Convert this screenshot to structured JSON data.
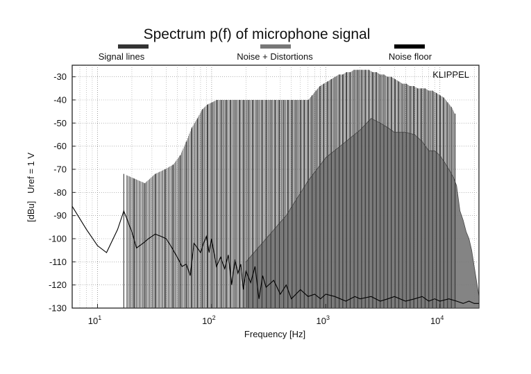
{
  "chart_data": {
    "type": "line",
    "title": "Spectrum p(f) of microphone signal",
    "xlabel": "Frequency [Hz]",
    "ylabel": "[dBu]   Uref = 1 V",
    "watermark": "KLIPPEL",
    "x_scale": "log",
    "xlim": [
      6,
      22000
    ],
    "ylim": [
      -130,
      -25
    ],
    "x_ticks": [
      {
        "value": 10,
        "base": "10",
        "exp": "1"
      },
      {
        "value": 100,
        "base": "10",
        "exp": "2"
      },
      {
        "value": 1000,
        "base": "10",
        "exp": "3"
      },
      {
        "value": 10000,
        "base": "10",
        "exp": "4"
      }
    ],
    "y_ticks": [
      -30,
      -40,
      -50,
      -60,
      -70,
      -80,
      -90,
      -100,
      -110,
      -120,
      -130
    ],
    "grid": true,
    "legend_position": "top",
    "legend": [
      {
        "label": "Signal lines",
        "color": "#333333"
      },
      {
        "label": "Noise + Distortions",
        "color": "#777777"
      },
      {
        "label": "Noise floor",
        "color": "#000000"
      }
    ],
    "series": [
      {
        "name": "Signal lines",
        "style": "spectral-lines",
        "color": "#333333",
        "x": [
          17,
          21,
          26,
          32,
          39,
          46,
          53,
          60,
          67,
          75,
          83,
          92,
          101,
          111,
          122,
          134,
          147,
          161,
          176,
          192,
          210,
          230,
          252,
          276,
          302,
          330,
          360,
          393,
          428,
          466,
          507,
          551,
          598,
          648,
          702,
          760,
          820,
          890,
          960,
          1040,
          1120,
          1210,
          1310,
          1410,
          1520,
          1640,
          1770,
          1910,
          2060,
          2220,
          2390,
          2580,
          2780,
          3000,
          3230,
          3480,
          3750,
          4050,
          4370,
          4710,
          5080,
          5480,
          5910,
          6380,
          6880,
          7420,
          8000,
          8630,
          9310,
          10040,
          10830,
          11680,
          12600,
          13590
        ],
        "y": [
          -72,
          -74,
          -76,
          -72,
          -70,
          -68,
          -64,
          -58,
          -52,
          -48,
          -44,
          -42,
          -41,
          -40,
          -40,
          -40,
          -40,
          -40,
          -40,
          -40,
          -40,
          -40,
          -40,
          -40,
          -40,
          -40,
          -40,
          -40,
          -40,
          -40,
          -40,
          -40,
          -40,
          -40,
          -40,
          -38,
          -36,
          -34,
          -33,
          -32,
          -31,
          -30,
          -29,
          -29,
          -28,
          -28,
          -27,
          -27,
          -27,
          -27,
          -27,
          -28,
          -28,
          -29,
          -29,
          -30,
          -30,
          -31,
          -32,
          -33,
          -33,
          -34,
          -34,
          -35,
          -35,
          -35,
          -36,
          -36,
          -37,
          -38,
          -39,
          -41,
          -43,
          -46
        ]
      },
      {
        "name": "Noise + Distortions",
        "style": "filled-band",
        "color": "#777777",
        "x": [
          200,
          300,
          450,
          700,
          1000,
          1500,
          2000,
          2500,
          3000,
          3500,
          4000,
          5000,
          6000,
          7000,
          8000,
          9000,
          10000,
          11000,
          12000,
          13000,
          14000,
          15000,
          16000,
          17000,
          18000,
          19000,
          20000,
          22000
        ],
        "y": [
          -110,
          -100,
          -90,
          -75,
          -65,
          -58,
          -53,
          -48,
          -50,
          -52,
          -54,
          -54,
          -55,
          -58,
          -62,
          -62,
          -64,
          -67,
          -70,
          -73,
          -77,
          -88,
          -92,
          -97,
          -100,
          -105,
          -112,
          -125
        ]
      },
      {
        "name": "Noise floor",
        "style": "line",
        "color": "#000000",
        "x": [
          6,
          8,
          10,
          12,
          15,
          17,
          20,
          22,
          25,
          28,
          32,
          36,
          40,
          45,
          50,
          55,
          60,
          65,
          70,
          75,
          80,
          85,
          90,
          95,
          100,
          110,
          120,
          130,
          140,
          150,
          160,
          170,
          180,
          190,
          200,
          220,
          240,
          260,
          280,
          300,
          350,
          400,
          450,
          500,
          600,
          700,
          800,
          900,
          1000,
          1200,
          1500,
          1800,
          2000,
          2500,
          3000,
          3500,
          4000,
          5000,
          6000,
          7000,
          8000,
          9000,
          10000,
          12000,
          14000,
          16000,
          18000,
          20000,
          22000
        ],
        "y": [
          -86,
          -96,
          -103,
          -106,
          -96,
          -88,
          -97,
          -104,
          -102,
          -100,
          -98,
          -99,
          -100,
          -104,
          -108,
          -112,
          -111,
          -116,
          -102,
          -104,
          -106,
          -102,
          -99,
          -106,
          -100,
          -112,
          -108,
          -113,
          -107,
          -120,
          -109,
          -115,
          -111,
          -122,
          -114,
          -119,
          -112,
          -126,
          -116,
          -121,
          -118,
          -124,
          -120,
          -126,
          -122,
          -125,
          -124,
          -126,
          -124,
          -125,
          -127,
          -125,
          -126,
          -125,
          -127,
          -126,
          -125,
          -127,
          -126,
          -125,
          -127,
          -126,
          -127,
          -126,
          -127,
          -128,
          -127,
          -128,
          -128
        ]
      }
    ]
  }
}
